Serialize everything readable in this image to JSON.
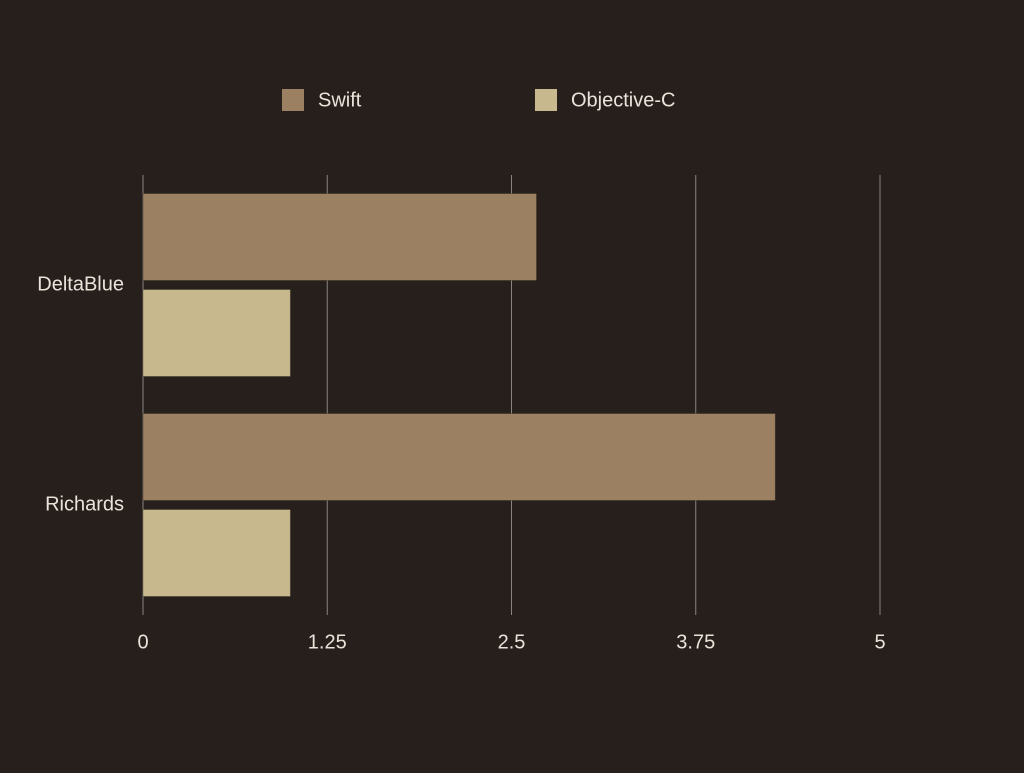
{
  "chart_data": {
    "type": "hbar",
    "categories": [
      "DeltaBlue",
      "Richards"
    ],
    "series": [
      {
        "name": "Swift",
        "color": "#9c8062",
        "values": [
          2.67,
          4.29
        ]
      },
      {
        "name": "Objective-C",
        "color": "#c7b88e",
        "values": [
          1.0,
          1.0
        ]
      }
    ],
    "xlim": [
      0,
      5
    ],
    "xticks": [
      0,
      1.25,
      2.5,
      3.75,
      5
    ],
    "grid": true,
    "legend": "top"
  }
}
